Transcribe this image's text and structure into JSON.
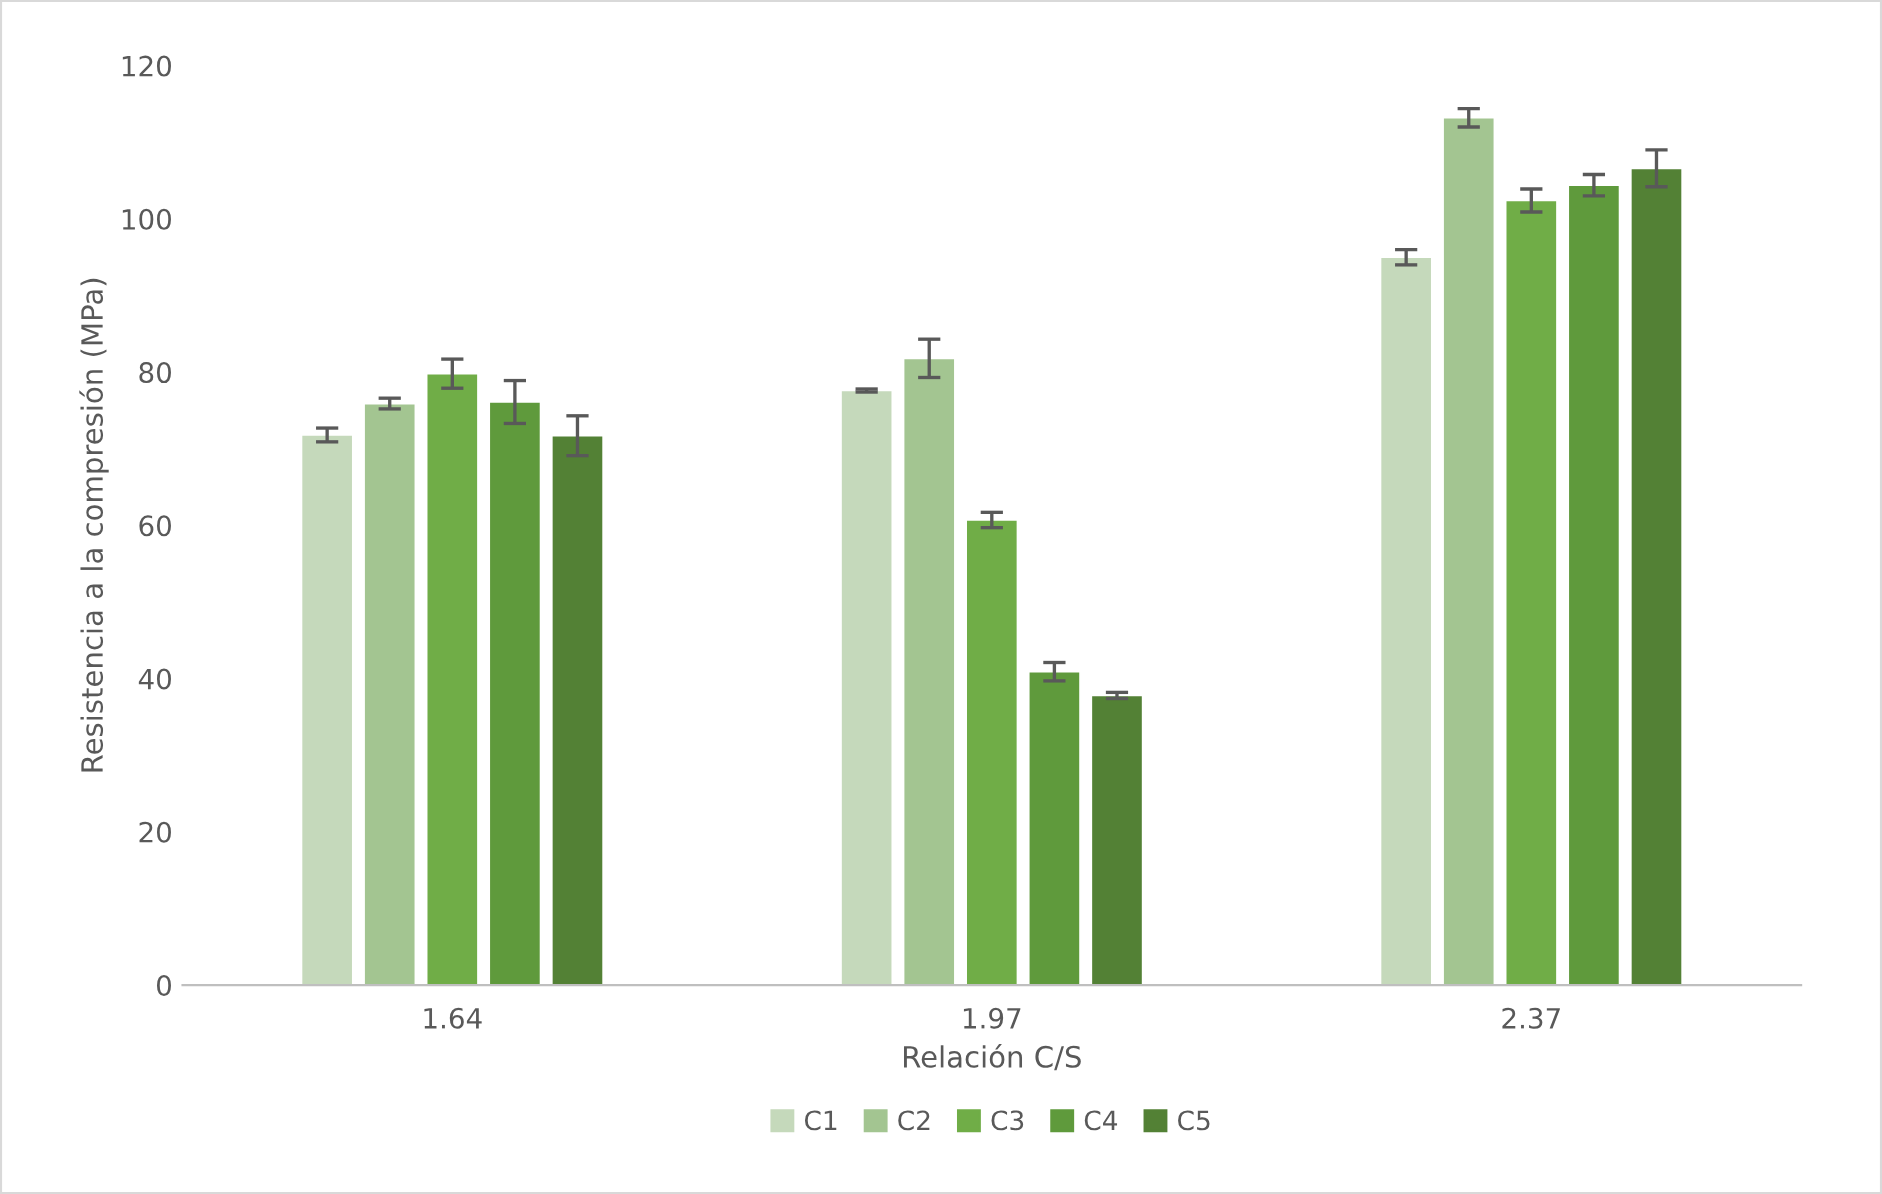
{
  "chart_data": {
    "type": "bar",
    "xlabel": "Relación C/S",
    "ylabel": "Resistencia a la compresión (MPa)",
    "categories": [
      "1.64",
      "1.97",
      "2.37"
    ],
    "series": [
      {
        "name": "C1",
        "color": "#c5d9bb",
        "values": [
          71.8,
          77.6,
          95.0
        ],
        "errors": [
          0.9,
          0.2,
          1.0
        ]
      },
      {
        "name": "C2",
        "color": "#a3c591",
        "values": [
          75.9,
          81.8,
          113.2
        ],
        "errors": [
          0.7,
          2.5,
          1.2
        ]
      },
      {
        "name": "C3",
        "color": "#70ad47",
        "values": [
          79.8,
          60.7,
          102.4
        ],
        "errors": [
          1.9,
          1.0,
          1.5
        ]
      },
      {
        "name": "C4",
        "color": "#5f9a3c",
        "values": [
          76.1,
          40.9,
          104.4
        ],
        "errors": [
          2.8,
          1.2,
          1.4
        ]
      },
      {
        "name": "C5",
        "color": "#538135",
        "values": [
          71.7,
          37.8,
          106.6
        ],
        "errors": [
          2.6,
          0.4,
          2.4
        ]
      }
    ],
    "ylim": [
      0,
      120
    ],
    "yticks": [
      0,
      20,
      40,
      60,
      80,
      100,
      120
    ],
    "grid": false,
    "legend": "bottom"
  }
}
